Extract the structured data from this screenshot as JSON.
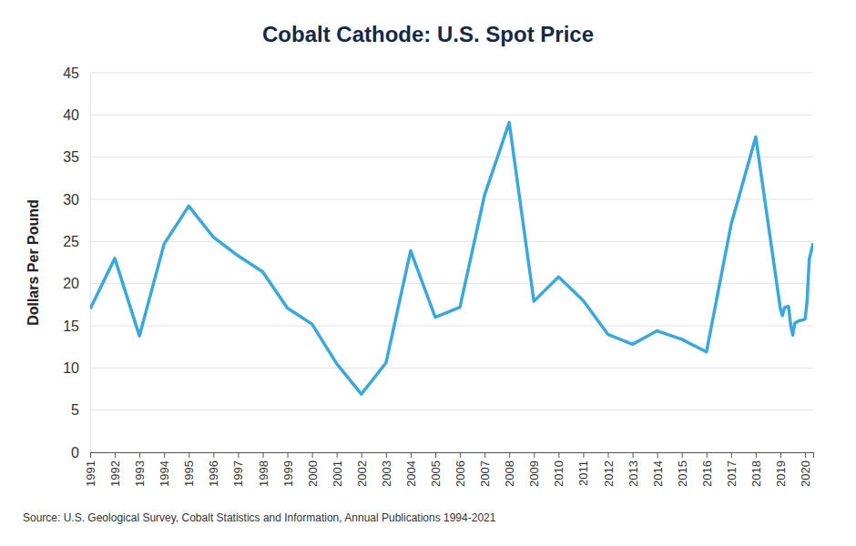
{
  "chart_data": {
    "type": "line",
    "title": "Cobalt Cathode: U.S. Spot Price",
    "y_label": "Dollars Per Pound",
    "source": "Source: U.S. Geological Survey, Cobalt Statistics and Information, Annual Publications 1994-2021",
    "x": [
      1991,
      1992,
      1993,
      1994,
      1995,
      1996,
      1997,
      1998,
      1999,
      2000,
      2001,
      2002,
      2003,
      2004,
      2005,
      2006,
      2007,
      2008,
      2009,
      2010,
      2011,
      2012,
      2013,
      2014,
      2015,
      2016,
      2017,
      2018,
      2019.0,
      2019.08,
      2019.17,
      2019.33,
      2019.42,
      2019.5,
      2019.58,
      2019.75,
      2019.92,
      2020.0,
      2020.08,
      2020.17,
      2020.33
    ],
    "values": [
      17,
      23,
      13.8,
      24.7,
      29.2,
      25.5,
      23.3,
      21.4,
      17.1,
      15.2,
      10.5,
      6.9,
      10.6,
      23.9,
      16,
      17.2,
      30.5,
      39.1,
      17.9,
      20.8,
      18,
      14,
      12.8,
      14.4,
      13.4,
      11.9,
      27,
      37.4,
      17.0,
      16.2,
      17.2,
      17.3,
      15.0,
      13.9,
      15.3,
      15.6,
      15.7,
      15.8,
      17.8,
      22.9,
      24.8
    ],
    "color": "#3aa8dc",
    "xlim": [
      1991,
      2020.33
    ],
    "xticks": [
      1991,
      1992,
      1993,
      1994,
      1995,
      1996,
      1997,
      1998,
      1999,
      2000,
      2001,
      2002,
      2003,
      2004,
      2005,
      2006,
      2007,
      2008,
      2009,
      2010,
      2011,
      2012,
      2013,
      2014,
      2015,
      2016,
      2017,
      2018,
      2019,
      2020
    ],
    "ylim": [
      0,
      45
    ],
    "yticks": [
      0,
      5,
      10,
      15,
      20,
      25,
      30,
      35,
      40,
      45
    ],
    "grid": true
  }
}
